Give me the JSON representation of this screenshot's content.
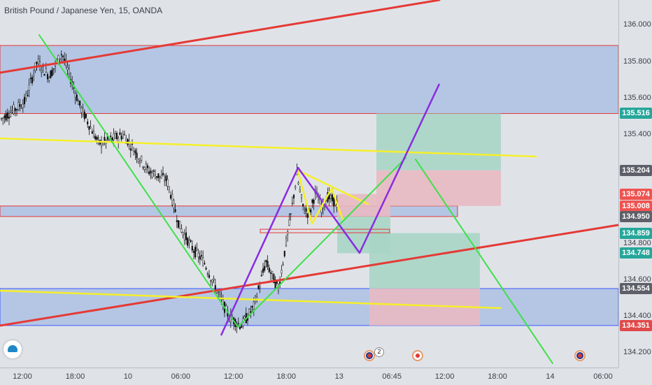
{
  "title": "British Pound / Japanese Yen, 15, OANDA",
  "chart_data": {
    "type": "candlestick",
    "symbol": "British Pound / Japanese Yen",
    "timeframe": "15",
    "source": "OANDA",
    "ylim": [
      134.12,
      136.14
    ],
    "y_ticks": [
      "136.000",
      "135.800",
      "135.600",
      "135.400",
      "134.800",
      "134.600",
      "134.400",
      "134.200"
    ],
    "x_ticks": [
      "12:00",
      "18:00",
      "10",
      "06:00",
      "12:00",
      "18:00",
      "13",
      "06:45",
      "12:00",
      "18:00",
      "14",
      "06:00"
    ],
    "price_tags": [
      {
        "label": "135.516",
        "value": 135.516,
        "color": "#26a69a"
      },
      {
        "label": "135.204",
        "value": 135.204,
        "color": "#5d6068"
      },
      {
        "label": "135.074",
        "value": 135.074,
        "color": "#ef5350"
      },
      {
        "label": "135.008",
        "value": 135.008,
        "color": "#ef5350"
      },
      {
        "label": "134.950",
        "value": 134.95,
        "color": "#5d6068"
      },
      {
        "label": "134.859",
        "value": 134.859,
        "color": "#26a69a"
      },
      {
        "label": "134.748",
        "value": 134.748,
        "color": "#26a69a"
      },
      {
        "label": "134.554",
        "value": 134.554,
        "color": "#5d6068"
      },
      {
        "label": "134.351",
        "value": 134.351,
        "color": "#e04a4a"
      }
    ],
    "price_path": [
      [
        0.0,
        135.48
      ],
      [
        0.04,
        135.58
      ],
      [
        0.06,
        135.8
      ],
      [
        0.08,
        135.72
      ],
      [
        0.1,
        135.85
      ],
      [
        0.13,
        135.55
      ],
      [
        0.16,
        135.35
      ],
      [
        0.2,
        135.4
      ],
      [
        0.24,
        135.2
      ],
      [
        0.27,
        135.15
      ],
      [
        0.29,
        134.9
      ],
      [
        0.31,
        134.78
      ],
      [
        0.33,
        134.7
      ],
      [
        0.35,
        134.55
      ],
      [
        0.37,
        134.4
      ],
      [
        0.39,
        134.35
      ],
      [
        0.41,
        134.45
      ],
      [
        0.43,
        134.7
      ],
      [
        0.45,
        134.55
      ],
      [
        0.47,
        134.95
      ],
      [
        0.48,
        135.18
      ],
      [
        0.49,
        135.0
      ],
      [
        0.5,
        134.96
      ],
      [
        0.51,
        135.08
      ],
      [
        0.52,
        135.0
      ],
      [
        0.53,
        135.06
      ],
      [
        0.545,
        135.02
      ]
    ]
  },
  "icons": {
    "logo": "tradingview-logo-icon",
    "event_uk_flag": "uk-flag-icon",
    "event_japan": "japan-flag-icon"
  },
  "event_badges": {
    "uk_count": "2"
  },
  "colors": {
    "background": "#dfe3e8",
    "zone_fill": "#b4c6e4",
    "red_line": "#e53935",
    "yellow_line": "#f5ef2a",
    "green_line": "#3fe04a",
    "purple_line": "#8a2be2",
    "target_fill": "#a8d5c6",
    "stop_fill": "#e8b9c2"
  }
}
